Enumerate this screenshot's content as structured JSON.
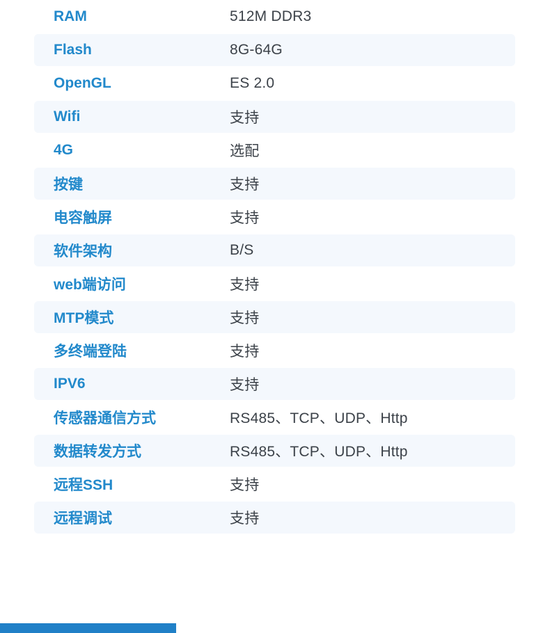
{
  "theme": {
    "background": "#ffffff",
    "label_color": "#2289cb",
    "value_color": "#3c4249",
    "stripe_color": "#f4f8fd",
    "footer_bar_color": "#2080c7"
  },
  "table": {
    "rows": [
      {
        "label": "RAM",
        "value": "512M DDR3"
      },
      {
        "label": "Flash",
        "value": "8G-64G"
      },
      {
        "label": "OpenGL",
        "value": "ES 2.0"
      },
      {
        "label": "Wifi",
        "value": "支持"
      },
      {
        "label": "4G",
        "value": "选配"
      },
      {
        "label": "按键",
        "value": "支持"
      },
      {
        "label": "电容触屏",
        "value": "支持"
      },
      {
        "label": "软件架构",
        "value": "B/S"
      },
      {
        "label": "web端访问",
        "value": "支持"
      },
      {
        "label": "MTP模式",
        "value": "支持"
      },
      {
        "label": "多终端登陆",
        "value": "支持"
      },
      {
        "label": "IPV6",
        "value": "支持"
      },
      {
        "label": "传感器通信方式",
        "value": "RS485、TCP、UDP、Http"
      },
      {
        "label": "数据转发方式",
        "value": "RS485、TCP、UDP、Http"
      },
      {
        "label": "远程SSH",
        "value": "支持"
      },
      {
        "label": "远程调试",
        "value": "支持"
      }
    ]
  }
}
